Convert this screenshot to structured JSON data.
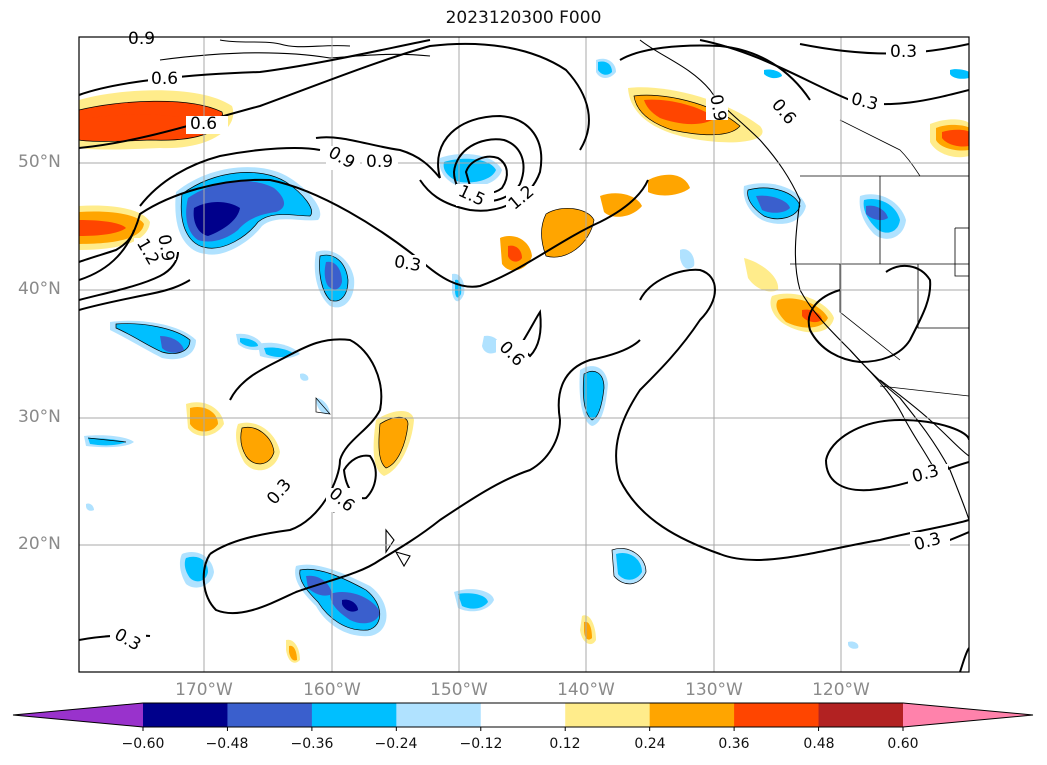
{
  "title": "2023120300 F000",
  "lat_labels": [
    "50°N",
    "40°N",
    "30°N",
    "20°N"
  ],
  "lon_labels": [
    "170°W",
    "160°W",
    "150°W",
    "140°W",
    "130°W",
    "120°W"
  ],
  "colorbar": {
    "ticks": [
      "−0.60",
      "−0.48",
      "−0.36",
      "−0.24",
      "−0.12",
      "0.12",
      "0.24",
      "0.36",
      "0.48",
      "0.60"
    ],
    "colors": [
      "#9932cc",
      "#00008b",
      "#3a5fcd",
      "#00bfff",
      "#b0e2ff",
      "#ffffff",
      "#ffec8b",
      "#ffa500",
      "#ff4500",
      "#b22222",
      "#ff82ab"
    ]
  },
  "contour_labels": [
    "0.9",
    "0.6",
    "0.6",
    "0.3",
    "0.3",
    "0.9",
    "0.6",
    "0.9",
    "0.9",
    "1.5",
    "1.2",
    "0.3",
    "0.9",
    "1.2",
    "0.6",
    "0.6",
    "0.3",
    "0.3",
    "0.3",
    "0.3"
  ],
  "colors": {
    "frame": "#000000",
    "grid": "#a9a9a9"
  }
}
